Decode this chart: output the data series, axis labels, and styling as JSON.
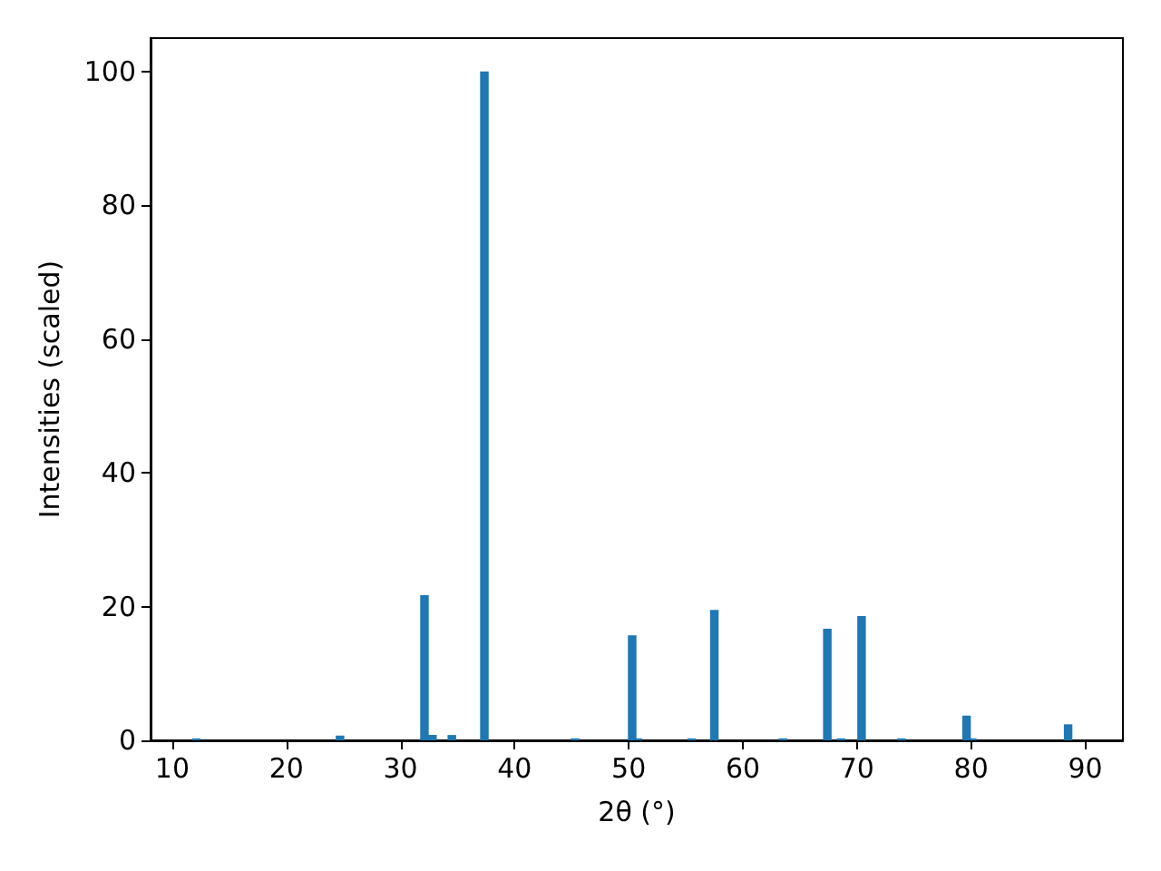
{
  "chart_data": {
    "type": "bar",
    "xlabel": "2θ (°)",
    "ylabel": "Intensities (scaled)",
    "x": [
      12.1,
      24.7,
      32.1,
      32.8,
      34.5,
      37.35,
      45.3,
      50.3,
      50.8,
      55.5,
      57.5,
      63.5,
      67.4,
      68.6,
      70.4,
      73.9,
      79.6,
      80.1,
      88.5
    ],
    "values": [
      0.3,
      0.7,
      21.7,
      0.8,
      0.8,
      100,
      0.3,
      15.7,
      0.3,
      0.3,
      19.5,
      0.3,
      16.7,
      0.3,
      18.6,
      0.3,
      3.7,
      0.3,
      2.4
    ],
    "color": "#1f77b4",
    "xlim": [
      8.1,
      93.3
    ],
    "xticks": [
      10,
      20,
      30,
      40,
      50,
      60,
      70,
      80,
      90
    ],
    "ylim": [
      0,
      105
    ],
    "yticks": [
      0,
      20,
      40,
      60,
      80,
      100
    ],
    "grid": false
  }
}
